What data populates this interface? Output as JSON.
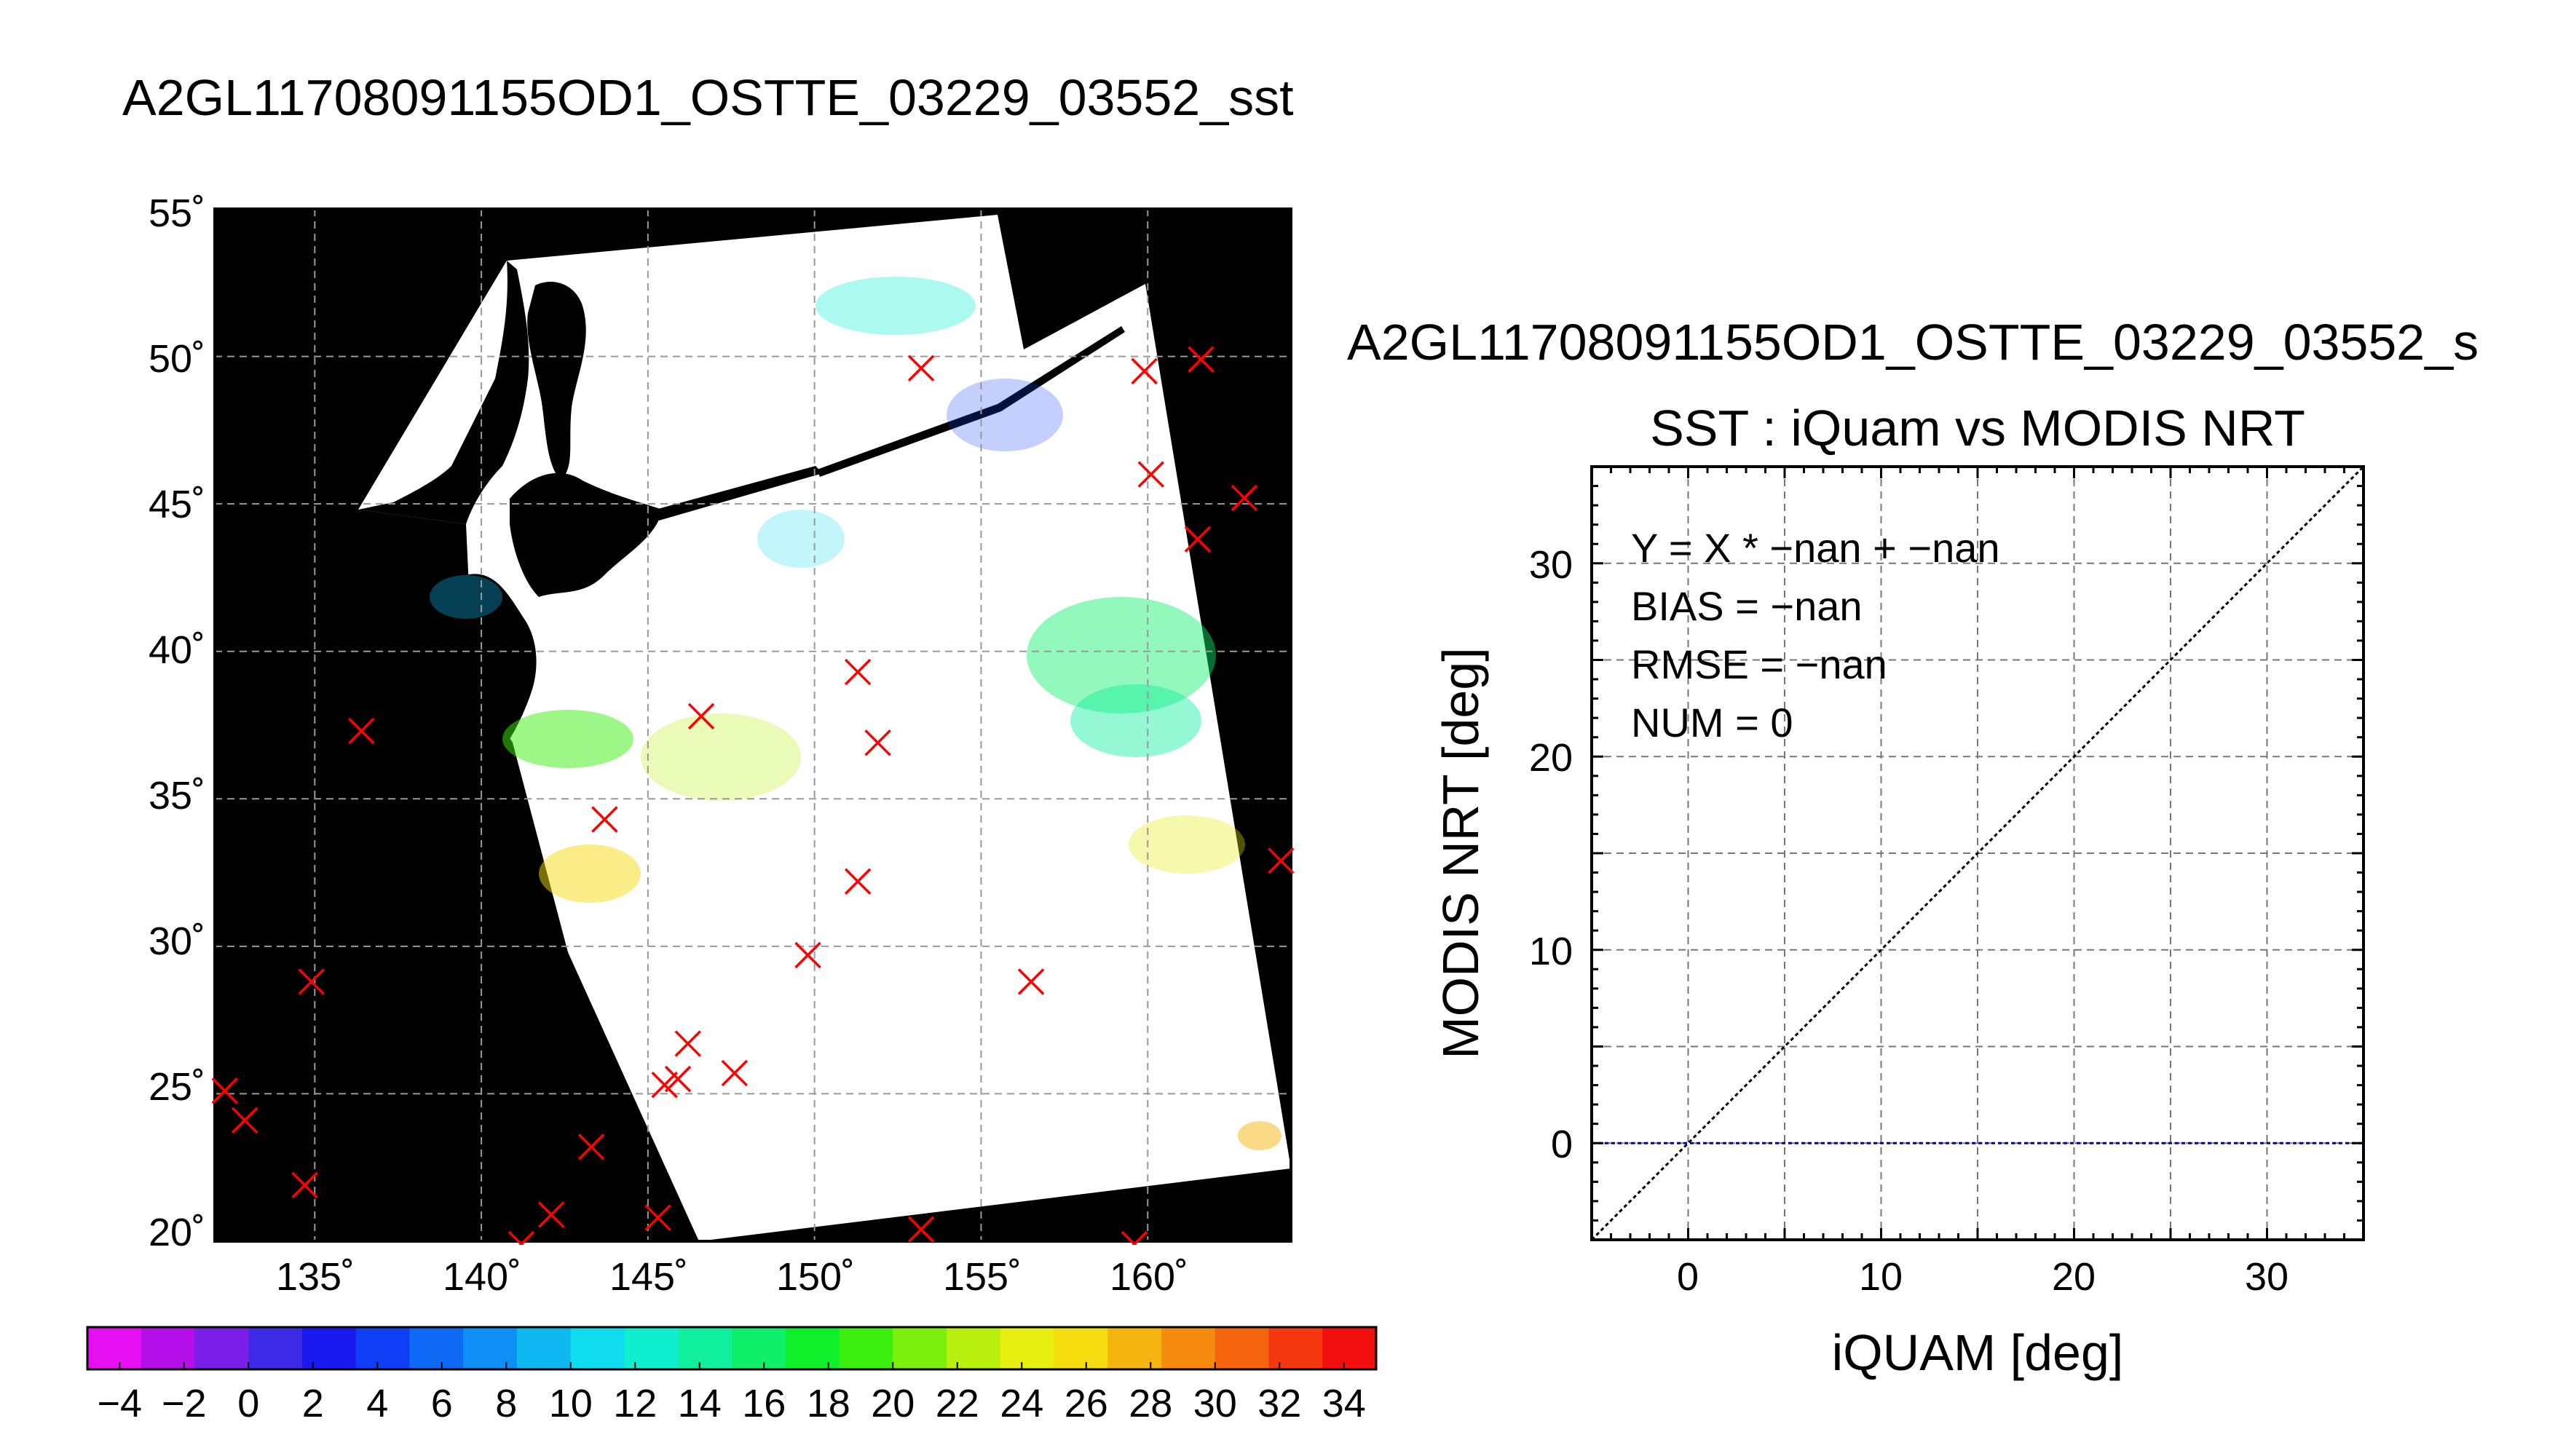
{
  "map_panel": {
    "title": "A2GL11708091155OD1_OSTTE_03229_03552_sst",
    "lat_tick_labels": [
      "55˚",
      "50˚",
      "45˚",
      "40˚",
      "35˚",
      "30˚",
      "25˚",
      "20˚"
    ],
    "lon_tick_labels": [
      "135˚",
      "140˚",
      "145˚",
      "150˚",
      "155˚",
      "160˚"
    ],
    "colorbar_labels": [
      "−4",
      "−2",
      "0",
      "2",
      "4",
      "6",
      "8",
      "10",
      "12",
      "14",
      "16",
      "18",
      "20",
      "22",
      "24",
      "26",
      "28",
      "30",
      "32",
      "34"
    ],
    "colors": {
      "background": "#000000",
      "swath": "#ffffff",
      "marker": "#ff0000",
      "grid": "#999999"
    }
  },
  "scatter_panel": {
    "panel_title": "A2GL11708091155OD1_OSTTE_03229_03552_s",
    "subtitle": "SST : iQuam vs MODIS NRT",
    "xlabel": "iQUAM [deg]",
    "ylabel": "MODIS NRT [deg]",
    "stats": {
      "equation": "Y = X * −nan + −nan",
      "bias": "BIAS = −nan",
      "rmse": "RMSE = −nan",
      "num": "NUM = 0"
    },
    "x_tick_labels": [
      "0",
      "10",
      "20",
      "30"
    ],
    "y_tick_labels": [
      "0",
      "10",
      "20",
      "30"
    ],
    "colors": {
      "identity_line": "#000000",
      "zero_line": "#0000aa",
      "grid": "#777777"
    }
  },
  "chart_data": [
    {
      "type": "scatter",
      "title": "A2GL11708091155OD1_OSTTE_03229_03552_sst",
      "xlim": [
        132,
        164.3
      ],
      "ylim": [
        20,
        55
      ],
      "x_ticks": [
        135,
        140,
        145,
        150,
        155,
        160
      ],
      "y_ticks": [
        20,
        25,
        30,
        35,
        40,
        45,
        50,
        55
      ],
      "grid": true,
      "series": [
        {
          "points": [
            [
              153.2,
              49.6
            ],
            [
              159.9,
              49.5
            ],
            [
              161.6,
              49.9
            ],
            [
              160.1,
              46.0
            ],
            [
              162.9,
              45.2
            ],
            [
              161.5,
              43.8
            ],
            [
              151.3,
              39.3
            ],
            [
              151.9,
              36.9
            ],
            [
              146.6,
              37.8
            ],
            [
              136.4,
              37.3
            ],
            [
              143.7,
              34.3
            ],
            [
              151.3,
              32.2
            ],
            [
              164.0,
              32.9
            ],
            [
              149.8,
              29.7
            ],
            [
              156.5,
              28.8
            ],
            [
              134.9,
              28.8
            ],
            [
              146.2,
              26.7
            ],
            [
              147.6,
              25.7
            ],
            [
              145.5,
              25.3
            ],
            [
              145.9,
              25.5
            ],
            [
              132.3,
              25.1
            ],
            [
              132.9,
              24.1
            ],
            [
              143.3,
              23.2
            ],
            [
              134.7,
              21.9
            ],
            [
              142.1,
              20.9
            ],
            [
              145.3,
              20.8
            ],
            [
              153.2,
              20.4
            ],
            [
              141.2,
              19.9
            ],
            [
              159.6,
              19.9
            ]
          ]
        }
      ],
      "colorbar": {
        "min": -5,
        "max": 35,
        "tick_labels": [
          -4,
          -2,
          0,
          2,
          4,
          6,
          8,
          10,
          12,
          14,
          16,
          18,
          20,
          22,
          24,
          26,
          28,
          30,
          32,
          34
        ],
        "colors": [
          "#e60ff2",
          "#b40fe8",
          "#7b1fe8",
          "#3d2ae6",
          "#1a1af0",
          "#0f3ef5",
          "#0f6af5",
          "#0f8ff5",
          "#0fb8f0",
          "#0fdcef",
          "#0fefd0",
          "#0fef9e",
          "#0fef6a",
          "#0fef2a",
          "#3cef0f",
          "#7def0f",
          "#b8ef0f",
          "#e6ef0f",
          "#f5dc0f",
          "#f5b40f",
          "#f58c0f",
          "#f5640f",
          "#f5380f",
          "#f20f0f"
        ]
      }
    },
    {
      "type": "scatter",
      "title": "SST : iQuam vs MODIS NRT",
      "xlabel": "iQUAM [deg]",
      "ylabel": "MODIS NRT [deg]",
      "xlim": [
        -5,
        35
      ],
      "ylim": [
        -5,
        35
      ],
      "x_ticks": [
        0,
        10,
        20,
        30
      ],
      "y_ticks": [
        0,
        10,
        20,
        30
      ],
      "grid": true,
      "series": [],
      "lines": [
        {
          "kind": "identity",
          "from": [
            -5,
            -5
          ],
          "to": [
            35,
            35
          ]
        },
        {
          "kind": "horizontal",
          "y": 0
        }
      ]
    }
  ]
}
